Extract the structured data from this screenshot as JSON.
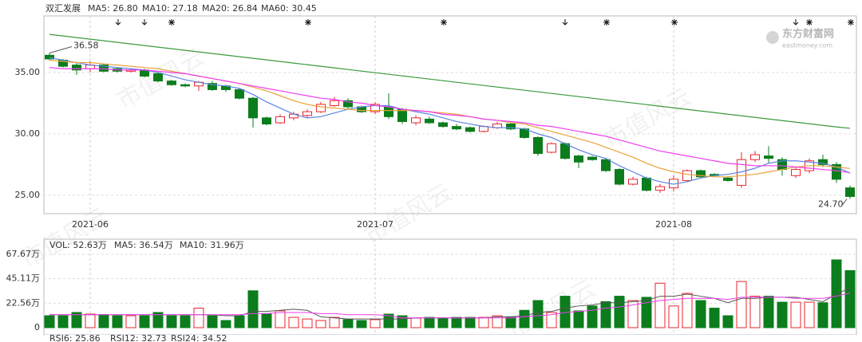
{
  "watermark": "市值风云",
  "logo": {
    "title": "东方财富网",
    "subtitle": "eastmoney.com"
  },
  "chart_data": [
    {
      "type": "candlestick",
      "title": "双汇发展",
      "categories": [
        null,
        null,
        null,
        "2021-06",
        null,
        null,
        null,
        null,
        null,
        null,
        null,
        null,
        null,
        null,
        null,
        null,
        null,
        null,
        null,
        null,
        null,
        null,
        null,
        null,
        "2021-07",
        null,
        null,
        null,
        null,
        null,
        null,
        null,
        null,
        null,
        null,
        null,
        null,
        null,
        null,
        null,
        null,
        null,
        null,
        null,
        null,
        null,
        "2021-08",
        null,
        null,
        null,
        null,
        null,
        null,
        null,
        null,
        null,
        null,
        null,
        null,
        null
      ],
      "open": [
        36.4,
        36.0,
        35.6,
        35.3,
        35.6,
        35.3,
        35.1,
        35.2,
        34.9,
        34.3,
        34.0,
        33.9,
        34.1,
        33.9,
        33.6,
        32.9,
        31.3,
        30.9,
        31.3,
        31.5,
        31.8,
        32.3,
        32.7,
        32.2,
        31.8,
        32.2,
        32.0,
        30.9,
        31.2,
        30.9,
        30.6,
        30.5,
        30.2,
        30.5,
        30.8,
        30.4,
        29.7,
        28.5,
        29.2,
        28.2,
        28.1,
        27.9,
        27.1,
        25.9,
        26.4,
        25.4,
        25.6,
        26.2,
        27.0,
        26.7,
        26.4,
        25.8,
        27.9,
        28.2,
        27.9,
        26.6,
        27.0,
        27.9,
        27.5,
        25.6
      ],
      "high": [
        36.58,
        36.1,
        35.8,
        35.9,
        35.7,
        35.4,
        35.3,
        35.3,
        35.0,
        34.4,
        34.1,
        34.3,
        34.3,
        34.0,
        33.7,
        33.0,
        31.4,
        31.6,
        31.8,
        32.0,
        32.6,
        33.0,
        32.9,
        32.3,
        32.6,
        33.3,
        32.1,
        31.5,
        31.4,
        31.0,
        30.8,
        30.6,
        30.7,
        31.0,
        30.9,
        30.5,
        29.8,
        29.3,
        29.3,
        28.3,
        28.2,
        28.0,
        27.2,
        26.5,
        26.5,
        25.9,
        26.6,
        27.1,
        27.1,
        26.8,
        26.5,
        28.5,
        28.6,
        29.0,
        28.1,
        27.3,
        28.0,
        28.3,
        27.7,
        25.8
      ],
      "low": [
        36.0,
        35.4,
        34.8,
        35.0,
        35.0,
        35.0,
        35.0,
        34.6,
        34.2,
        33.9,
        33.8,
        33.5,
        33.5,
        33.4,
        32.8,
        30.5,
        30.7,
        30.8,
        31.1,
        31.3,
        31.7,
        32.2,
        32.0,
        31.7,
        31.6,
        31.2,
        30.8,
        30.7,
        30.8,
        30.5,
        30.3,
        30.1,
        30.1,
        30.4,
        30.3,
        29.6,
        28.2,
        28.4,
        27.9,
        27.2,
        27.8,
        26.9,
        25.8,
        25.8,
        25.3,
        25.2,
        25.3,
        26.1,
        26.4,
        26.5,
        26.1,
        25.6,
        27.7,
        27.6,
        26.6,
        26.4,
        26.8,
        27.3,
        26.0,
        24.7
      ],
      "close": [
        36.1,
        35.5,
        35.2,
        35.6,
        35.1,
        35.1,
        35.2,
        34.7,
        34.3,
        34.0,
        33.9,
        34.2,
        33.6,
        33.6,
        32.9,
        31.3,
        30.8,
        31.4,
        31.6,
        31.8,
        32.4,
        32.7,
        32.2,
        31.8,
        32.4,
        31.4,
        31.0,
        31.3,
        30.9,
        30.6,
        30.4,
        30.2,
        30.6,
        30.8,
        30.4,
        29.7,
        28.4,
        29.2,
        28.0,
        27.7,
        27.9,
        27.0,
        25.9,
        26.3,
        25.4,
        25.7,
        26.3,
        27.0,
        26.5,
        26.6,
        26.2,
        27.9,
        28.3,
        28.0,
        27.1,
        27.1,
        27.8,
        27.5,
        26.3,
        24.9
      ],
      "up_color": "#e8262d",
      "down_color": "#0b7d1c",
      "series": [
        {
          "name": "MA5: 26.80",
          "color": "#5b84e0",
          "values": [
            36.2,
            36.0,
            35.8,
            35.6,
            35.5,
            35.4,
            35.3,
            35.2,
            35.0,
            34.7,
            34.4,
            34.2,
            34.0,
            33.9,
            33.7,
            33.2,
            32.6,
            32.1,
            31.6,
            31.3,
            31.4,
            31.7,
            32.0,
            32.2,
            32.3,
            32.3,
            32.0,
            31.8,
            31.6,
            31.3,
            31.0,
            30.8,
            30.6,
            30.5,
            30.5,
            30.4,
            30.0,
            29.7,
            29.2,
            28.7,
            28.3,
            28.0,
            27.4,
            26.9,
            26.4,
            26.1,
            25.9,
            26.1,
            26.4,
            26.6,
            26.7,
            26.9,
            27.2,
            27.6,
            27.8,
            27.8,
            27.7,
            27.6,
            27.3,
            26.8
          ]
        },
        {
          "name": "MA10: 27.18",
          "color": "#e9a23b",
          "values": [
            36.0,
            35.9,
            35.8,
            35.8,
            35.7,
            35.6,
            35.5,
            35.4,
            35.3,
            35.1,
            34.9,
            34.7,
            34.5,
            34.3,
            34.1,
            33.8,
            33.5,
            33.1,
            32.7,
            32.4,
            32.2,
            32.1,
            32.0,
            31.9,
            31.9,
            31.9,
            31.9,
            31.9,
            31.8,
            31.7,
            31.6,
            31.4,
            31.2,
            31.1,
            30.9,
            30.8,
            30.5,
            30.2,
            29.9,
            29.6,
            29.3,
            28.9,
            28.5,
            28.1,
            27.6,
            27.2,
            26.9,
            26.7,
            26.6,
            26.5,
            26.5,
            26.6,
            26.7,
            26.9,
            27.1,
            27.3,
            27.4,
            27.4,
            27.3,
            27.18
          ]
        },
        {
          "name": "MA20: 26.84",
          "color": "#f03cf0",
          "values": [
            35.4,
            35.3,
            35.3,
            35.3,
            35.3,
            35.2,
            35.2,
            35.2,
            35.1,
            35.0,
            34.9,
            34.7,
            34.5,
            34.3,
            34.1,
            33.9,
            33.7,
            33.5,
            33.3,
            33.1,
            32.9,
            32.8,
            32.6,
            32.5,
            32.3,
            32.2,
            32.0,
            31.9,
            31.8,
            31.6,
            31.5,
            31.4,
            31.2,
            31.1,
            31.0,
            30.9,
            30.7,
            30.6,
            30.4,
            30.2,
            30.0,
            29.8,
            29.5,
            29.2,
            28.9,
            28.6,
            28.4,
            28.2,
            28.0,
            27.8,
            27.6,
            27.5,
            27.4,
            27.4,
            27.4,
            27.3,
            27.2,
            27.1,
            27.0,
            26.84
          ]
        },
        {
          "name": "MA60: 30.45",
          "color": "#3c9a3c",
          "values": [
            38.1,
            37.97,
            37.84,
            37.71,
            37.58,
            37.45,
            37.32,
            37.19,
            37.06,
            36.93,
            36.8,
            36.67,
            36.54,
            36.41,
            36.28,
            36.15,
            36.02,
            35.89,
            35.76,
            35.63,
            35.5,
            35.37,
            35.24,
            35.11,
            34.98,
            34.85,
            34.72,
            34.59,
            34.46,
            34.33,
            34.2,
            34.07,
            33.94,
            33.81,
            33.68,
            33.55,
            33.42,
            33.29,
            33.16,
            33.03,
            32.9,
            32.77,
            32.64,
            32.51,
            32.38,
            32.25,
            32.12,
            31.99,
            31.86,
            31.73,
            31.6,
            31.47,
            31.34,
            31.21,
            31.08,
            30.95,
            30.82,
            30.69,
            30.56,
            30.45
          ]
        }
      ],
      "ylim": [
        23.5,
        39.6
      ],
      "yticks": [
        {
          "value": 25,
          "label": "25.00"
        },
        {
          "value": 30,
          "label": "30.00"
        },
        {
          "value": 35,
          "label": "35.00"
        }
      ],
      "annotations": [
        {
          "value": 36.58,
          "label": "36.58"
        },
        {
          "value": 24.7,
          "label": "24.70"
        }
      ],
      "grid": true
    },
    {
      "type": "volume",
      "volume_label": "VOL: 52.63万",
      "volume_label_color": "#e040e0",
      "values": [
        11,
        11,
        14,
        12.5,
        12,
        11,
        11,
        11,
        14,
        11,
        11,
        18,
        11,
        6.6,
        11,
        34,
        13,
        15.5,
        9.5,
        8,
        6.6,
        9.5,
        7.4,
        6.6,
        7.4,
        12.5,
        11,
        8.8,
        9.5,
        8.8,
        9.5,
        9.5,
        9.5,
        11,
        10,
        16,
        25,
        14,
        29,
        15.5,
        20,
        24,
        29,
        25,
        28,
        41,
        20,
        31.6,
        25,
        18,
        11,
        42.6,
        29,
        29,
        23.5,
        23.5,
        23.5,
        23,
        62.5,
        52.63
      ],
      "series": [
        {
          "name": "MA5: 36.54万",
          "color": "#555555",
          "values": [
            12,
            12,
            12,
            12,
            12,
            12,
            12,
            12,
            12,
            12,
            12,
            12,
            12,
            11,
            11,
            15,
            15,
            16,
            17,
            16,
            10,
            9,
            8,
            8,
            8,
            8,
            8,
            9,
            9,
            9,
            9,
            9,
            9,
            10,
            10,
            11,
            14,
            15,
            18,
            20,
            21,
            23,
            23,
            24,
            25,
            29,
            29,
            31,
            29,
            27,
            23,
            27,
            27,
            28,
            28,
            28,
            26,
            24,
            31,
            36.54
          ]
        },
        {
          "name": "MA10: 31.96万",
          "color": "#f03cf0",
          "values": [
            12,
            12,
            12,
            12,
            12,
            12,
            12,
            12,
            12,
            12,
            12,
            12,
            12,
            12,
            12,
            13,
            13,
            14,
            14,
            14,
            13,
            13,
            12,
            12,
            12,
            11,
            9,
            9,
            9,
            9,
            9,
            9,
            9,
            9,
            9,
            10,
            11,
            12,
            14,
            15,
            16,
            18,
            19,
            21,
            23,
            25,
            26,
            27,
            27,
            27,
            26,
            28,
            28,
            28,
            28,
            27,
            27,
            27,
            29,
            31.96
          ]
        }
      ],
      "ylim": [
        -6.6,
        81.6
      ],
      "yticks": [
        0,
        {
          "value": 22.56,
          "label": "22.56万"
        },
        {
          "value": 45.11,
          "label": "45.11万"
        },
        {
          "value": 67.67,
          "label": "67.67万"
        }
      ],
      "footer_labels": [
        {
          "text": "RSI6: 25.86",
          "color": "#5b84e0"
        },
        {
          "text": "RSI12: 32.73",
          "color": "#e9a23b"
        },
        {
          "text": "RSI24: 34.52",
          "color": "#e040e0"
        }
      ],
      "grid": true
    }
  ]
}
